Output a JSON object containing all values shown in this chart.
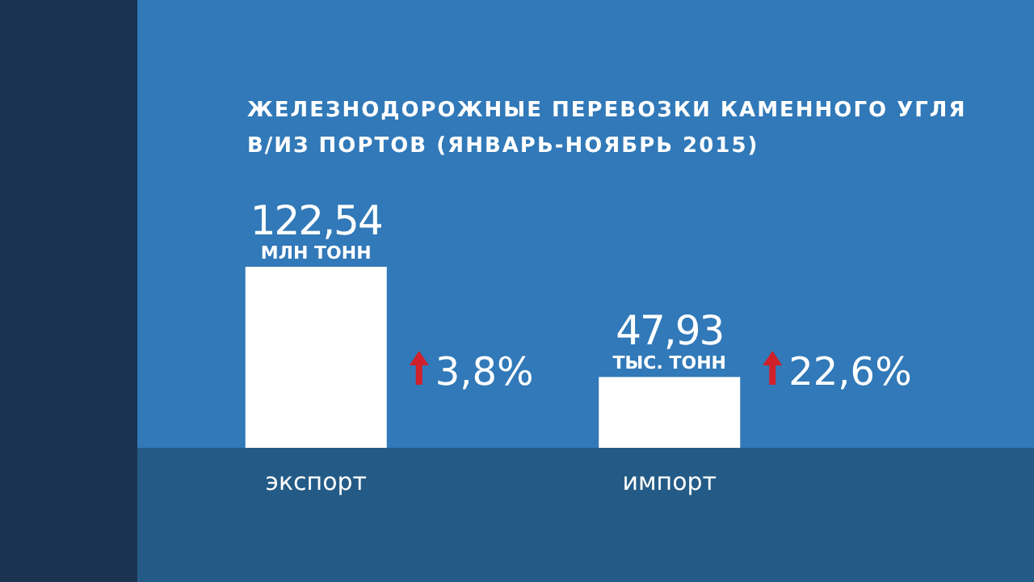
{
  "chart_data": {
    "type": "bar",
    "title": "ЖЕЛЕЗНОДОРОЖНЫЕ ПЕРЕВОЗКИ КАМЕННОГО УГЛЯ\nВ/ИЗ ПОРТОВ (ЯНВАРЬ-НОЯБРЬ 2015)",
    "categories": [
      "экспорт",
      "импорт"
    ],
    "values": [
      122.54,
      47.93
    ],
    "color": "#ffffff",
    "value_labels": [
      "122,54",
      "47,93"
    ],
    "annotations": [
      {
        "text": "МЛН ТОНН",
        "x": "экспорт",
        "y": 122.54
      },
      {
        "text": "ТЫС. ТОНН",
        "x": "импорт",
        "y": 47.93
      },
      "3,8%",
      "22,6%"
    ]
  }
}
